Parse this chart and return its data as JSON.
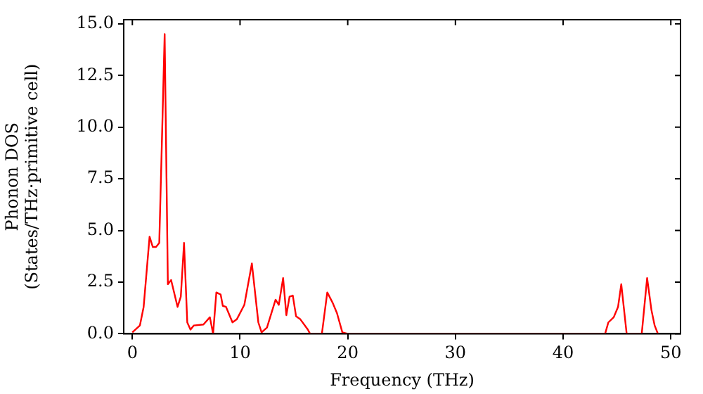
{
  "chart_data": {
    "type": "line",
    "xlabel": "Frequency (THz)",
    "ylabel": "Phonon DOS\n(States/THz·primitive cell)",
    "x": [
      0,
      0.7,
      1.05,
      1.6,
      1.9,
      2.2,
      2.5,
      2.7,
      3.0,
      3.3,
      3.6,
      4.2,
      4.5,
      4.8,
      5.1,
      5.4,
      5.7,
      6.6,
      7.2,
      7.5,
      7.8,
      8.2,
      8.4,
      8.7,
      9.3,
      9.7,
      10.4,
      11.1,
      11.7,
      12.0,
      12.5,
      13.3,
      13.6,
      14.0,
      14.3,
      14.6,
      14.9,
      15.2,
      15.6,
      16.3,
      16.5,
      17.6,
      18.1,
      18.6,
      19.0,
      19.5,
      20,
      43.9,
      44.2,
      44.7,
      45.1,
      45.4,
      45.9,
      47.3,
      47.8,
      48.2,
      48.5,
      48.8
    ],
    "series": [
      {
        "color": "#ff0000",
        "values": [
          0.07,
          0.4,
          1.3,
          4.7,
          4.2,
          4.2,
          4.4,
          8.4,
          14.5,
          2.4,
          2.6,
          1.3,
          1.8,
          4.4,
          0.55,
          0.2,
          0.4,
          0.45,
          0.8,
          0,
          2.0,
          1.9,
          1.35,
          1.3,
          0.55,
          0.7,
          1.4,
          3.4,
          0.55,
          0.07,
          0.3,
          1.65,
          1.4,
          2.7,
          0.9,
          1.8,
          1.85,
          0.85,
          0.7,
          0.2,
          0,
          0,
          2.0,
          1.5,
          1.0,
          0.07,
          0,
          0,
          0.55,
          0.8,
          1.3,
          2.4,
          0,
          0,
          2.7,
          1.15,
          0.4,
          0
        ]
      }
    ],
    "xlim": [
      -0.8,
      50.9
    ],
    "ylim": [
      0,
      15.2
    ],
    "xticks": [
      0,
      10,
      20,
      30,
      40,
      50
    ],
    "yticks": [
      {
        "value": 0,
        "label": "0.0"
      },
      {
        "value": 2.5,
        "label": "2.5"
      },
      {
        "value": 5,
        "label": "5.0"
      },
      {
        "value": 7.5,
        "label": "7.5"
      },
      {
        "value": 10,
        "label": "10.0"
      },
      {
        "value": 12.5,
        "label": "12.5"
      },
      {
        "value": 15,
        "label": "15.0"
      }
    ],
    "grid": false,
    "legend": false,
    "marker": "none",
    "line_style": "solid"
  }
}
